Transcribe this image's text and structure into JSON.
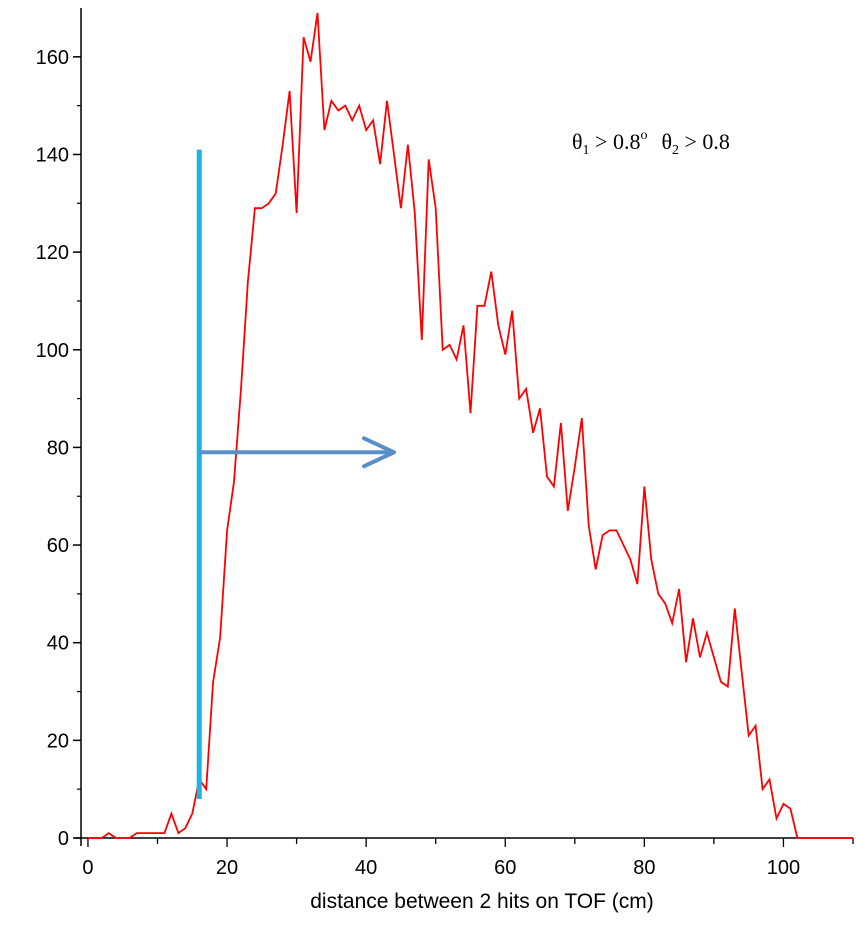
{
  "chart_data": {
    "type": "line",
    "title": "",
    "xlabel": "distance between 2 hits on TOF (cm)",
    "ylabel": "",
    "xlim": [
      -1,
      110
    ],
    "ylim": [
      0,
      170
    ],
    "grid": false,
    "legend": "none",
    "x_ticks": [
      0,
      20,
      40,
      60,
      80,
      100
    ],
    "x_tick_labels": [
      "0",
      "20",
      "40",
      "60",
      "80",
      "100"
    ],
    "y_ticks": [
      0,
      20,
      40,
      60,
      80,
      100,
      120,
      140,
      160
    ],
    "y_tick_labels": [
      "0",
      "20",
      "40",
      "60",
      "80",
      "100",
      "120",
      "140",
      "160"
    ],
    "series": [
      {
        "color": "#ff0000",
        "x": [
          0,
          1,
          2,
          3,
          4,
          5,
          6,
          7,
          8,
          9,
          10,
          11,
          12,
          13,
          14,
          15,
          16,
          17,
          18,
          19,
          20,
          21,
          22,
          23,
          24,
          25,
          26,
          27,
          28,
          29,
          30,
          31,
          32,
          33,
          34,
          35,
          36,
          37,
          38,
          39,
          40,
          41,
          42,
          43,
          44,
          45,
          46,
          47,
          48,
          49,
          50,
          51,
          52,
          53,
          54,
          55,
          56,
          57,
          58,
          59,
          60,
          61,
          62,
          63,
          64,
          65,
          66,
          67,
          68,
          69,
          70,
          71,
          72,
          73,
          74,
          75,
          76,
          77,
          78,
          79,
          80,
          81,
          82,
          83,
          84,
          85,
          86,
          87,
          88,
          89,
          90,
          91,
          92,
          93,
          94,
          95,
          96,
          97,
          98,
          99,
          100,
          101,
          102,
          103,
          104,
          105,
          106,
          107,
          108,
          109,
          110
        ],
        "y": [
          0,
          0,
          0,
          1,
          0,
          0,
          0,
          1,
          1,
          1,
          1,
          1,
          5,
          1,
          2,
          5,
          12,
          10,
          32,
          41,
          63,
          73,
          92,
          114,
          129,
          129,
          130,
          132,
          142,
          153,
          128,
          164,
          159,
          169,
          145,
          151,
          149,
          150,
          147,
          150,
          145,
          147,
          138,
          151,
          140,
          129,
          142,
          128,
          102,
          139,
          129,
          100,
          101,
          98,
          105,
          87,
          109,
          109,
          116,
          105,
          99,
          108,
          90,
          92,
          83,
          88,
          74,
          72,
          85,
          67,
          76,
          86,
          64,
          55,
          62,
          63,
          63,
          60,
          57,
          52,
          72,
          57,
          50,
          48,
          44,
          51,
          36,
          45,
          37,
          42,
          37,
          32,
          31,
          47,
          34,
          21,
          23,
          10,
          12,
          4,
          7,
          6,
          0,
          0,
          0,
          0,
          0,
          0,
          0,
          0,
          0
        ]
      }
    ],
    "annotations": {
      "marker_line_x": 16,
      "marker_line_y_range": [
        8,
        141
      ],
      "marker_line_color": "#1ab4e6",
      "arrow_from": [
        16,
        79
      ],
      "arrow_to": [
        44,
        79
      ],
      "arrow_color": "#5b8ec8",
      "cut_label": {
        "theta1": "θ",
        "sub1": "1",
        "rel1": " > 0.8",
        "sup1": "o",
        "theta2": "θ",
        "sub2": "2",
        "rel2": " > 0.8"
      }
    }
  }
}
